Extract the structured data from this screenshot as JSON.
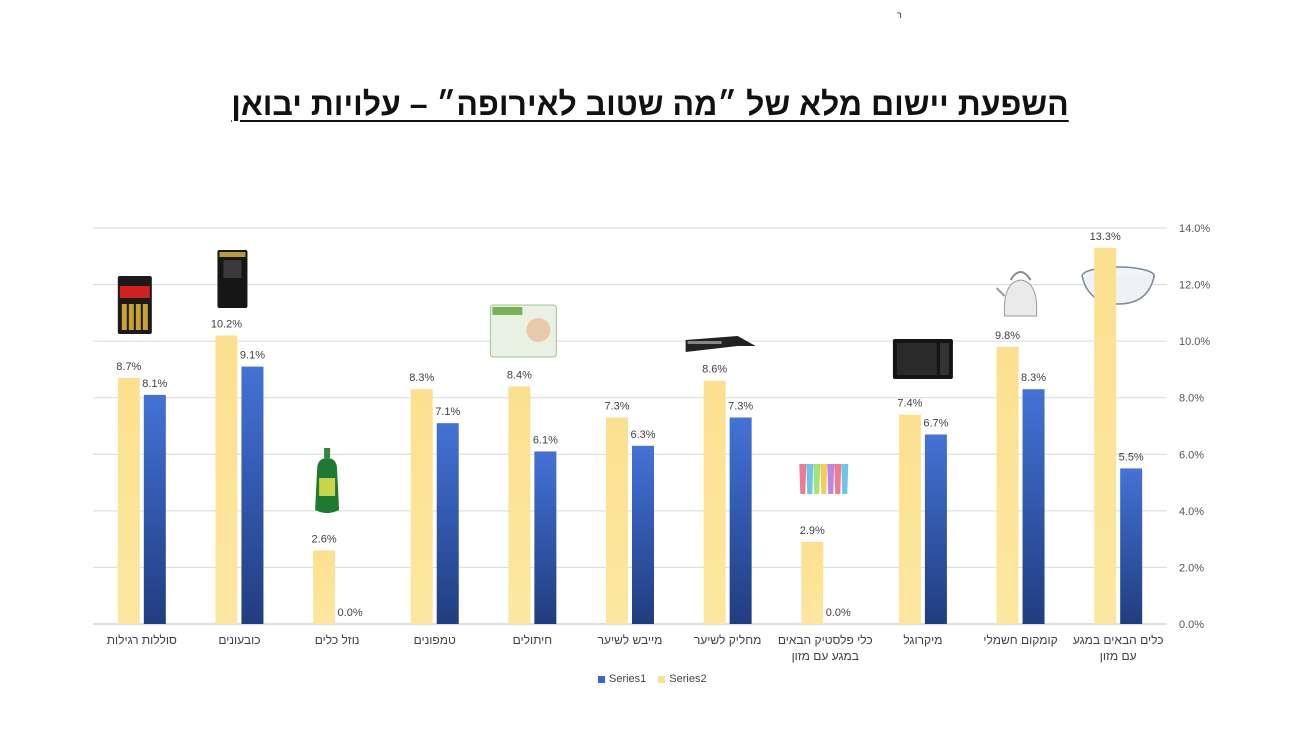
{
  "page": {
    "corner_mark": "ר",
    "title": "השפעת יישום מלא של ״מה שטוב לאירופה״ – עלויות יבואן"
  },
  "chart_data": {
    "type": "bar",
    "title": "",
    "xlabel": "",
    "ylabel": "",
    "ylim": [
      0,
      14
    ],
    "y_ticks": [
      "0.0%",
      "2.0%",
      "4.0%",
      "6.0%",
      "8.0%",
      "10.0%",
      "12.0%",
      "14.0%"
    ],
    "y_axis_position": "right",
    "grid": true,
    "legend_position": "bottom",
    "categories": [
      [
        "סוללות רגילות"
      ],
      [
        "כובעונים"
      ],
      [
        "נוזל כלים"
      ],
      [
        "טמפונים"
      ],
      [
        "חיתולים"
      ],
      [
        "מייבש לשיער"
      ],
      [
        "מחליק לשיער"
      ],
      [
        "כלי פלסטיק הבאים",
        "במגע עם מזון"
      ],
      [
        "מיקרוגל"
      ],
      [
        "קומקום חשמלי"
      ],
      [
        "כלים הבאים במגע",
        "עם מזון"
      ]
    ],
    "series": [
      {
        "name": "Series2",
        "color": "#fbe08f",
        "values": [
          8.7,
          10.2,
          2.6,
          8.3,
          8.4,
          7.3,
          8.6,
          2.9,
          7.4,
          9.8,
          13.3
        ],
        "labels": [
          "8.7%",
          "10.2%",
          "2.6%",
          "8.3%",
          "8.4%",
          "7.3%",
          "8.6%",
          "2.9%",
          "7.4%",
          "9.8%",
          "13.3%"
        ]
      },
      {
        "name": "Series1",
        "color": "#3a67c4",
        "values": [
          8.1,
          9.1,
          0.0,
          7.1,
          6.1,
          6.3,
          7.3,
          0.0,
          6.7,
          8.3,
          5.5
        ],
        "labels": [
          "8.1%",
          "9.1%",
          "0.0%",
          "7.1%",
          "6.1%",
          "6.3%",
          "7.3%",
          "0.0%",
          "6.7%",
          "8.3%",
          "5.5%"
        ]
      }
    ],
    "product_icons": [
      "battery-pack-icon",
      "hair-cap-pack-icon",
      "dish-soap-bottle-icon",
      "",
      "diaper-pack-icon",
      "",
      "hair-straightener-icon",
      "plastic-cups-icon",
      "microwave-icon",
      "electric-kettle-icon",
      "glass-bowl-icon"
    ],
    "legend": [
      {
        "name": "Series1",
        "color": "#3a67c4"
      },
      {
        "name": "Series2",
        "color": "#fbe08f"
      }
    ]
  }
}
